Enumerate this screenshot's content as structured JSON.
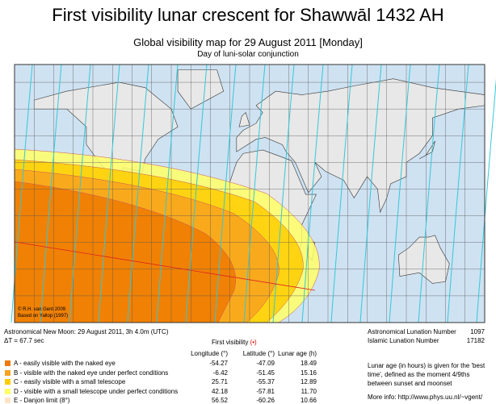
{
  "header": {
    "title": "First visibility lunar crescent for Shawwāl 1432 AH",
    "subtitle": "Global visibility map for 29 August 2011 [Monday]",
    "note": "Day of luni-solar conjunction"
  },
  "map": {
    "credit": "© R.H. van Gent 2009",
    "credit2": "Based on Yallop (1997)"
  },
  "footer": {
    "new_moon": "Astronomical New Moon: 29 August 2011, 3h 4.0m (UTC)",
    "delta_t": "ΔT = 67.7 sec",
    "first_visibility": "First visibility",
    "dot": "(•)",
    "columns": [
      "Longitude (°)",
      "Latitude (°)",
      "Lunar age (h)"
    ],
    "rows": [
      {
        "label": "A - easily visible with the naked eye",
        "color": "#ef7a00",
        "values": [
          "-54.27",
          "-47.09",
          "18.49"
        ]
      },
      {
        "label": "B - visible with the naked eye under perfect conditions",
        "color": "#f8a21e",
        "values": [
          "-6.42",
          "-51.45",
          "15.16"
        ]
      },
      {
        "label": "C - easily visible with a small telescope",
        "color": "#ffcc00",
        "values": [
          "25.71",
          "-55.37",
          "12.89"
        ]
      },
      {
        "label": "D - visible with a small telescope under perfect conditions",
        "color": "#ffff66",
        "values": [
          "42.18",
          "-57.81",
          "11.70"
        ]
      },
      {
        "label": "E - Danjon limit (8°)",
        "color": "#ffe4c4",
        "values": [
          "56.52",
          "-60.26",
          "10.66"
        ]
      }
    ],
    "lunation": [
      {
        "label": "Astronomical Lunation Number",
        "value": "1097"
      },
      {
        "label": "Islamic Lunation Number",
        "value": "17182"
      }
    ],
    "lunar_age_note": "Lunar age (in hours) is given for the 'best time', defined as the moment 4/9ths between sunset and moonset",
    "more_info": "More info: http://www.phys.uu.nl/~vgent/"
  }
}
